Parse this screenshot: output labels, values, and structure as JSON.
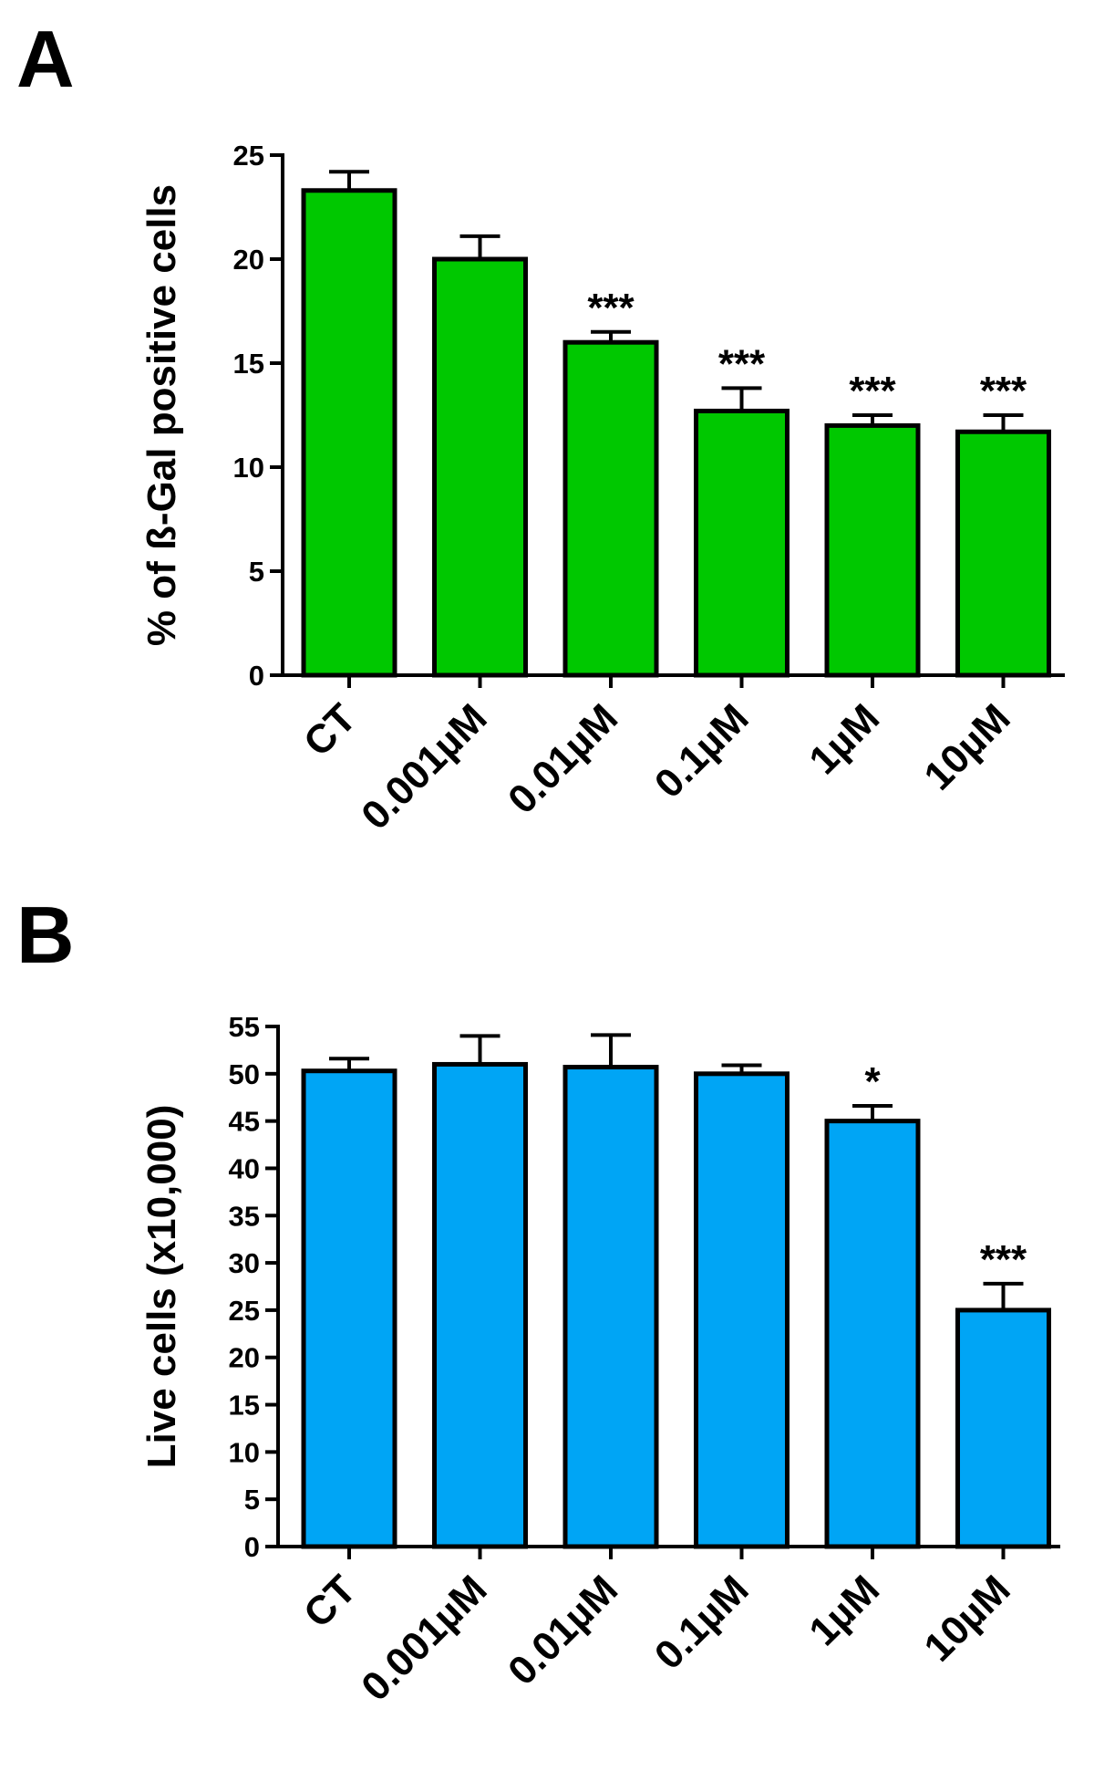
{
  "chart_data": [
    {
      "panel": "A",
      "type": "bar",
      "categories": [
        "CT",
        "0.001µM",
        "0.01µM",
        "0.1µM",
        "1µM",
        "10µM"
      ],
      "values": [
        23.3,
        20.0,
        16.0,
        12.7,
        12.0,
        11.7
      ],
      "errors": [
        0.9,
        1.1,
        0.5,
        1.1,
        0.5,
        0.8
      ],
      "significance": [
        "",
        "",
        "***",
        "***",
        "***",
        "***"
      ],
      "ylabel": "% of ß-Gal positive cells",
      "ylim": [
        0,
        25
      ],
      "yticks": [
        0,
        5,
        10,
        15,
        20,
        25
      ],
      "bar_color": "#00c800",
      "grid": false,
      "legend": "none"
    },
    {
      "panel": "B",
      "type": "bar",
      "categories": [
        "CT",
        "0.001µM",
        "0.01µM",
        "0.1µM",
        "1µM",
        "10µM"
      ],
      "values": [
        50.3,
        51.0,
        50.7,
        50.0,
        45.0,
        25.0
      ],
      "errors": [
        1.3,
        3.0,
        3.4,
        0.9,
        1.6,
        2.8
      ],
      "significance": [
        "",
        "",
        "",
        "",
        "*",
        "***"
      ],
      "ylabel": "Live cells (x10,000)",
      "ylim": [
        0,
        55
      ],
      "yticks": [
        0,
        5,
        10,
        15,
        20,
        25,
        30,
        35,
        40,
        45,
        50,
        55
      ],
      "bar_color": "#00a5f5",
      "grid": false,
      "legend": "none"
    }
  ]
}
